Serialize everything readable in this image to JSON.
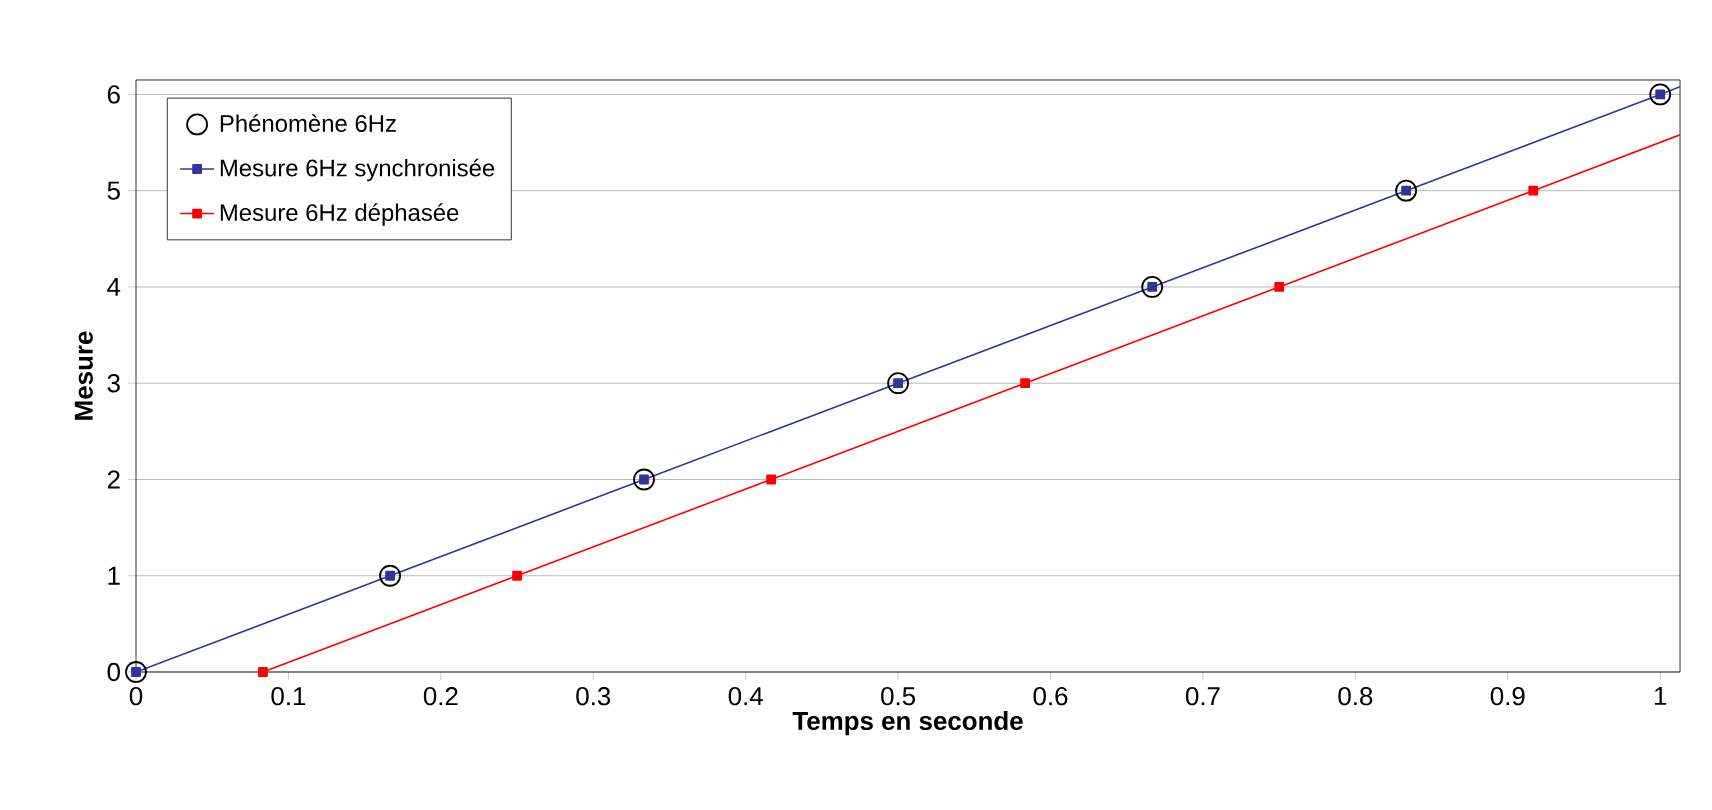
{
  "chart_data": {
    "type": "line",
    "xlabel": "Temps en seconde",
    "ylabel": "Mesure",
    "xlim": [
      0,
      1.013
    ],
    "ylim": [
      0,
      6.15
    ],
    "xticks": [
      0,
      0.1,
      0.2,
      0.3,
      0.4,
      0.5,
      0.6,
      0.7,
      0.8,
      0.9,
      1
    ],
    "yticks": [
      0,
      1,
      2,
      3,
      4,
      5,
      6
    ],
    "grid": "y",
    "legend": "top left",
    "series": [
      {
        "name": "Phénomène 6Hz",
        "type": "scatter",
        "marker": "circle",
        "color": "#000000",
        "x": [
          0,
          0.1667,
          0.3333,
          0.5,
          0.6667,
          0.8333,
          1
        ],
        "values": [
          0,
          1,
          2,
          3,
          4,
          5,
          6
        ]
      },
      {
        "name": "Mesure 6Hz synchronisée",
        "marker": "square",
        "color": "#333399",
        "x": [
          0,
          0.1667,
          0.3333,
          0.5,
          0.6667,
          0.8333,
          1
        ],
        "values": [
          0,
          1,
          2,
          3,
          4,
          5,
          6
        ]
      },
      {
        "name": "Mesure 6Hz déphasée",
        "marker": "square",
        "color": "#ff0000",
        "x": [
          0.0833,
          0.25,
          0.4167,
          0.5833,
          0.75,
          0.9167
        ],
        "values": [
          0,
          1,
          2,
          3,
          4,
          5
        ]
      },
      {
        "marker": "none",
        "color": "#333399",
        "x": [
          1,
          1.013
        ],
        "values": [
          6,
          6.08
        ]
      },
      {
        "marker": "none",
        "color": "#ff0000",
        "x": [
          0.9167,
          1.013
        ],
        "values": [
          5,
          5.58
        ]
      }
    ]
  }
}
